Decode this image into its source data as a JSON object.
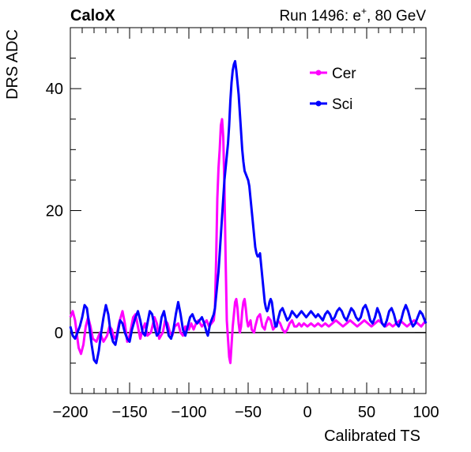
{
  "chart_data": {
    "type": "line",
    "header_left": "CaloX",
    "header_right": {
      "prefix": "Run 1496: e",
      "superscript": "+",
      "suffix": ", 80 GeV"
    },
    "xlabel": "Calibrated TS",
    "ylabel": "DRS ADC",
    "xlim": [
      -200,
      100
    ],
    "ylim": [
      -10,
      50
    ],
    "x_ticks": [
      -200,
      -150,
      -100,
      -50,
      0,
      50,
      100
    ],
    "x_tick_labels": [
      "−200",
      "−150",
      "−100",
      "−50",
      "0",
      "50",
      "100"
    ],
    "y_ticks": [
      0,
      20,
      40
    ],
    "y_tick_labels": [
      "0",
      "20",
      "40"
    ],
    "zero_line": true,
    "legend_position": "top-right",
    "series": [
      {
        "name": "Cer",
        "color": "#ff00ff",
        "points": [
          [
            -200,
            2.5
          ],
          [
            -198,
            3.5
          ],
          [
            -196,
            2
          ],
          [
            -194,
            -1
          ],
          [
            -193,
            -2.5
          ],
          [
            -191,
            -3.5
          ],
          [
            -189,
            -2
          ],
          [
            -187,
            1
          ],
          [
            -185,
            2.5
          ],
          [
            -183,
            1
          ],
          [
            -181,
            -1
          ],
          [
            -178,
            -1.5
          ],
          [
            -175,
            0
          ],
          [
            -172,
            -1.5
          ],
          [
            -169,
            -0.5
          ],
          [
            -167,
            1
          ],
          [
            -165,
            0.5
          ],
          [
            -163,
            -1
          ],
          [
            -161,
            -0.5
          ],
          [
            -159,
            1.5
          ],
          [
            -156,
            3.5
          ],
          [
            -154,
            1.5
          ],
          [
            -152,
            -1.5
          ],
          [
            -150,
            -0.5
          ],
          [
            -147,
            2.5
          ],
          [
            -145,
            3
          ],
          [
            -143,
            1
          ],
          [
            -141,
            -1
          ],
          [
            -139,
            0.5
          ],
          [
            -137,
            1.5
          ],
          [
            -135,
            -0.5
          ],
          [
            -132,
            0
          ],
          [
            -129,
            2.5
          ],
          [
            -127,
            1.5
          ],
          [
            -125,
            -1
          ],
          [
            -122,
            0
          ],
          [
            -120,
            2
          ],
          [
            -118,
            1.5
          ],
          [
            -116,
            0
          ],
          [
            -114,
            -0.5
          ],
          [
            -112,
            1
          ],
          [
            -109,
            1.5
          ],
          [
            -107,
            0
          ],
          [
            -105,
            -0.5
          ],
          [
            -103,
            1
          ],
          [
            -100,
            0.5
          ],
          [
            -98,
            1.5
          ],
          [
            -96,
            0.5
          ],
          [
            -94,
            1.5
          ],
          [
            -92,
            2
          ],
          [
            -89,
            1
          ],
          [
            -87,
            1.5
          ],
          [
            -85,
            2
          ],
          [
            -83,
            1
          ],
          [
            -81,
            1.5
          ],
          [
            -79,
            2
          ],
          [
            -78,
            4
          ],
          [
            -77,
            12
          ],
          [
            -76,
            22
          ],
          [
            -75,
            27
          ],
          [
            -74,
            30
          ],
          [
            -73,
            34
          ],
          [
            -72,
            35
          ],
          [
            -71,
            32
          ],
          [
            -70,
            24
          ],
          [
            -69,
            12
          ],
          [
            -68,
            2
          ],
          [
            -67,
            -1
          ],
          [
            -66,
            -4
          ],
          [
            -65,
            -5
          ],
          [
            -64,
            -2
          ],
          [
            -63,
            1
          ],
          [
            -62,
            3
          ],
          [
            -61,
            5
          ],
          [
            -60,
            5.5
          ],
          [
            -59,
            4
          ],
          [
            -58,
            1.5
          ],
          [
            -57,
            0
          ],
          [
            -56,
            1
          ],
          [
            -55,
            3.5
          ],
          [
            -54,
            5
          ],
          [
            -53,
            5.5
          ],
          [
            -52,
            4
          ],
          [
            -51,
            2
          ],
          [
            -50,
            1
          ],
          [
            -49,
            1.5
          ],
          [
            -48,
            2
          ],
          [
            -47,
            0.5
          ],
          [
            -45,
            0
          ],
          [
            -44,
            1
          ],
          [
            -42,
            2.5
          ],
          [
            -40,
            3
          ],
          [
            -38,
            1
          ],
          [
            -36,
            0.5
          ],
          [
            -35,
            1.5
          ],
          [
            -33,
            2.5
          ],
          [
            -31,
            2
          ],
          [
            -29,
            0.5
          ],
          [
            -27,
            1
          ],
          [
            -25,
            2
          ],
          [
            -23,
            1.5
          ],
          [
            -21,
            0.5
          ],
          [
            -19,
            0
          ],
          [
            -17,
            0.5
          ],
          [
            -15,
            1.5
          ],
          [
            -13,
            2
          ],
          [
            -11,
            1
          ],
          [
            -9,
            1
          ],
          [
            -7,
            1.5
          ],
          [
            -5,
            1
          ],
          [
            -3,
            1.5
          ],
          [
            0,
            1
          ],
          [
            3,
            1.5
          ],
          [
            6,
            1
          ],
          [
            9,
            1.5
          ],
          [
            12,
            1
          ],
          [
            15,
            1.5
          ],
          [
            18,
            1
          ],
          [
            21,
            1.5
          ],
          [
            24,
            2
          ],
          [
            27,
            1.5
          ],
          [
            30,
            1
          ],
          [
            33,
            1.5
          ],
          [
            36,
            2
          ],
          [
            39,
            1.5
          ],
          [
            42,
            1
          ],
          [
            45,
            1.5
          ],
          [
            48,
            2
          ],
          [
            51,
            1.5
          ],
          [
            54,
            1
          ],
          [
            57,
            1.5
          ],
          [
            60,
            2
          ],
          [
            63,
            1.5
          ],
          [
            66,
            1
          ],
          [
            69,
            1.5
          ],
          [
            72,
            1
          ],
          [
            75,
            1.5
          ],
          [
            78,
            2
          ],
          [
            81,
            1.5
          ],
          [
            84,
            1
          ],
          [
            87,
            1.5
          ],
          [
            90,
            2
          ],
          [
            93,
            1.5
          ],
          [
            96,
            1
          ],
          [
            98,
            1.5
          ],
          [
            100,
            2
          ]
        ]
      },
      {
        "name": "Sci",
        "color": "#0000ff",
        "points": [
          [
            -200,
            1
          ],
          [
            -198,
            -0.5
          ],
          [
            -196,
            -1
          ],
          [
            -194,
            0
          ],
          [
            -192,
            1
          ],
          [
            -190,
            2.5
          ],
          [
            -188,
            4.5
          ],
          [
            -186,
            4
          ],
          [
            -184,
            1
          ],
          [
            -182,
            -2
          ],
          [
            -180,
            -4.5
          ],
          [
            -178,
            -5
          ],
          [
            -176,
            -3
          ],
          [
            -174,
            0
          ],
          [
            -172,
            2.5
          ],
          [
            -170,
            4.5
          ],
          [
            -168,
            3
          ],
          [
            -166,
            0
          ],
          [
            -164,
            -1.5
          ],
          [
            -162,
            -2
          ],
          [
            -160,
            0
          ],
          [
            -158,
            2
          ],
          [
            -156,
            1.5
          ],
          [
            -154,
            0
          ],
          [
            -152,
            -1
          ],
          [
            -150,
            -1.5
          ],
          [
            -148,
            0.5
          ],
          [
            -145,
            2.5
          ],
          [
            -143,
            3.5
          ],
          [
            -141,
            2
          ],
          [
            -139,
            0
          ],
          [
            -137,
            -0.5
          ],
          [
            -135,
            1.5
          ],
          [
            -133,
            3.5
          ],
          [
            -131,
            3
          ],
          [
            -129,
            1
          ],
          [
            -127,
            -0.5
          ],
          [
            -125,
            0
          ],
          [
            -123,
            2.5
          ],
          [
            -121,
            3.5
          ],
          [
            -119,
            1.5
          ],
          [
            -117,
            -0.5
          ],
          [
            -115,
            -1
          ],
          [
            -113,
            0.5
          ],
          [
            -111,
            3
          ],
          [
            -109,
            5
          ],
          [
            -107,
            3
          ],
          [
            -105,
            0.5
          ],
          [
            -103,
            -0.5
          ],
          [
            -101,
            1
          ],
          [
            -99,
            2.5
          ],
          [
            -97,
            3
          ],
          [
            -95,
            2
          ],
          [
            -93,
            1.5
          ],
          [
            -91,
            2
          ],
          [
            -89,
            2.5
          ],
          [
            -87,
            1.5
          ],
          [
            -85,
            0
          ],
          [
            -84,
            -0.5
          ],
          [
            -83,
            0.5
          ],
          [
            -82,
            1.5
          ],
          [
            -81,
            2
          ],
          [
            -80,
            2.5
          ],
          [
            -79,
            3
          ],
          [
            -78,
            4
          ],
          [
            -77,
            6
          ],
          [
            -76,
            8
          ],
          [
            -75,
            10
          ],
          [
            -74,
            13
          ],
          [
            -73,
            16
          ],
          [
            -72,
            19
          ],
          [
            -71,
            22
          ],
          [
            -70,
            25
          ],
          [
            -69,
            27
          ],
          [
            -68,
            29
          ],
          [
            -67,
            31
          ],
          [
            -66,
            34
          ],
          [
            -65,
            38
          ],
          [
            -64,
            41
          ],
          [
            -63,
            43
          ],
          [
            -62,
            44
          ],
          [
            -61,
            44.5
          ],
          [
            -60,
            43
          ],
          [
            -59,
            41
          ],
          [
            -58,
            39
          ],
          [
            -57,
            36
          ],
          [
            -56,
            33
          ],
          [
            -55,
            30
          ],
          [
            -54,
            28
          ],
          [
            -53,
            26.5
          ],
          [
            -52,
            26
          ],
          [
            -51,
            25.5
          ],
          [
            -50,
            25
          ],
          [
            -49,
            24
          ],
          [
            -48,
            22
          ],
          [
            -47,
            20
          ],
          [
            -46,
            18
          ],
          [
            -45,
            16
          ],
          [
            -44,
            14
          ],
          [
            -43,
            13
          ],
          [
            -42,
            12.5
          ],
          [
            -41,
            12.5
          ],
          [
            -40,
            13
          ],
          [
            -39,
            11
          ],
          [
            -38,
            9
          ],
          [
            -37,
            7
          ],
          [
            -36,
            5
          ],
          [
            -35,
            4
          ],
          [
            -34,
            3.5
          ],
          [
            -33,
            4
          ],
          [
            -32,
            5
          ],
          [
            -31,
            5.5
          ],
          [
            -30,
            5
          ],
          [
            -29,
            3.5
          ],
          [
            -28,
            2
          ],
          [
            -27,
            1
          ],
          [
            -26,
            1
          ],
          [
            -25,
            2
          ],
          [
            -23,
            3.5
          ],
          [
            -21,
            4
          ],
          [
            -19,
            3
          ],
          [
            -17,
            2
          ],
          [
            -15,
            2.5
          ],
          [
            -13,
            3.5
          ],
          [
            -11,
            3
          ],
          [
            -9,
            2.5
          ],
          [
            -7,
            3
          ],
          [
            -5,
            3.5
          ],
          [
            -3,
            3
          ],
          [
            -1,
            2.5
          ],
          [
            1,
            3
          ],
          [
            3,
            3.5
          ],
          [
            5,
            3
          ],
          [
            7,
            2.5
          ],
          [
            9,
            3
          ],
          [
            11,
            2.5
          ],
          [
            13,
            2
          ],
          [
            15,
            3
          ],
          [
            17,
            3.5
          ],
          [
            19,
            3
          ],
          [
            21,
            2
          ],
          [
            23,
            2.5
          ],
          [
            25,
            3.5
          ],
          [
            27,
            4
          ],
          [
            29,
            3.5
          ],
          [
            31,
            2.5
          ],
          [
            33,
            2
          ],
          [
            35,
            3
          ],
          [
            37,
            4
          ],
          [
            39,
            3.5
          ],
          [
            41,
            2.5
          ],
          [
            43,
            2
          ],
          [
            45,
            2.5
          ],
          [
            47,
            4
          ],
          [
            49,
            4.5
          ],
          [
            51,
            3.5
          ],
          [
            53,
            2
          ],
          [
            55,
            1.5
          ],
          [
            57,
            2.5
          ],
          [
            59,
            4
          ],
          [
            61,
            3
          ],
          [
            63,
            1.5
          ],
          [
            65,
            1
          ],
          [
            67,
            2
          ],
          [
            69,
            3.5
          ],
          [
            71,
            4
          ],
          [
            73,
            3
          ],
          [
            75,
            1.5
          ],
          [
            77,
            1
          ],
          [
            79,
            2
          ],
          [
            81,
            3.5
          ],
          [
            83,
            4.5
          ],
          [
            85,
            3.5
          ],
          [
            87,
            2
          ],
          [
            89,
            1
          ],
          [
            91,
            1.5
          ],
          [
            93,
            2.5
          ],
          [
            95,
            3.5
          ],
          [
            97,
            3
          ],
          [
            99,
            2
          ],
          [
            100,
            1.5
          ]
        ]
      }
    ]
  }
}
